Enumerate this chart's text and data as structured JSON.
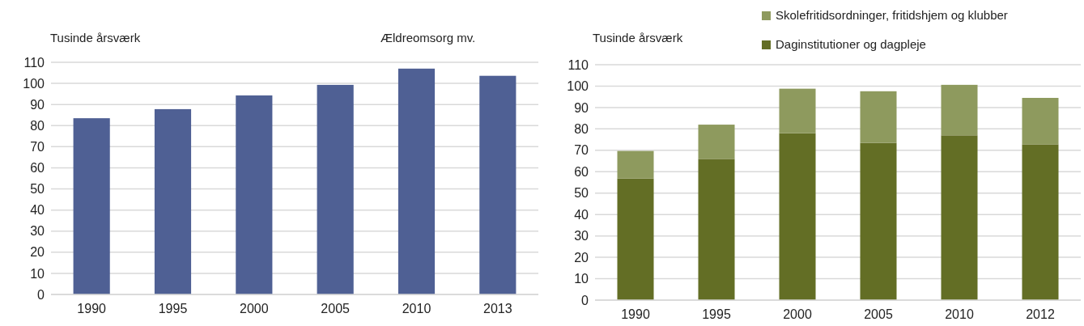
{
  "chart_data": [
    {
      "type": "bar",
      "title": "Ældreomsorg mv.",
      "ylabel": "Tusinde årsværk",
      "categories": [
        "1990",
        "1995",
        "2000",
        "2005",
        "2010",
        "2013"
      ],
      "series": [
        {
          "color": "#4f6094",
          "values": [
            83.5,
            87.8,
            94.3,
            99.3,
            107,
            103.6
          ]
        }
      ],
      "ylim": [
        0,
        110
      ],
      "yticks": [
        0,
        10,
        20,
        30,
        40,
        50,
        60,
        70,
        80,
        90,
        100,
        110
      ],
      "grid": "y",
      "legend": false
    },
    {
      "type": "bar",
      "ylabel": "Tusinde årsværk",
      "categories": [
        "1990",
        "1995",
        "2000",
        "2005",
        "2010",
        "2012"
      ],
      "stacked": true,
      "series": [
        {
          "name": "Daginstitutioner og dagpleje",
          "color": "#636e25",
          "values": [
            56.8,
            66,
            78,
            73.5,
            77,
            72.8
          ]
        },
        {
          "name": "Skolefritidsordninger, fritidshjem og klubber",
          "color": "#8e9a5e",
          "values": [
            12.9,
            16,
            20.8,
            24.1,
            23.6,
            21.7
          ]
        }
      ],
      "ylim": [
        0,
        110
      ],
      "yticks": [
        0,
        10,
        20,
        30,
        40,
        50,
        60,
        70,
        80,
        90,
        100,
        110
      ],
      "grid": "y",
      "legend": "top"
    }
  ]
}
